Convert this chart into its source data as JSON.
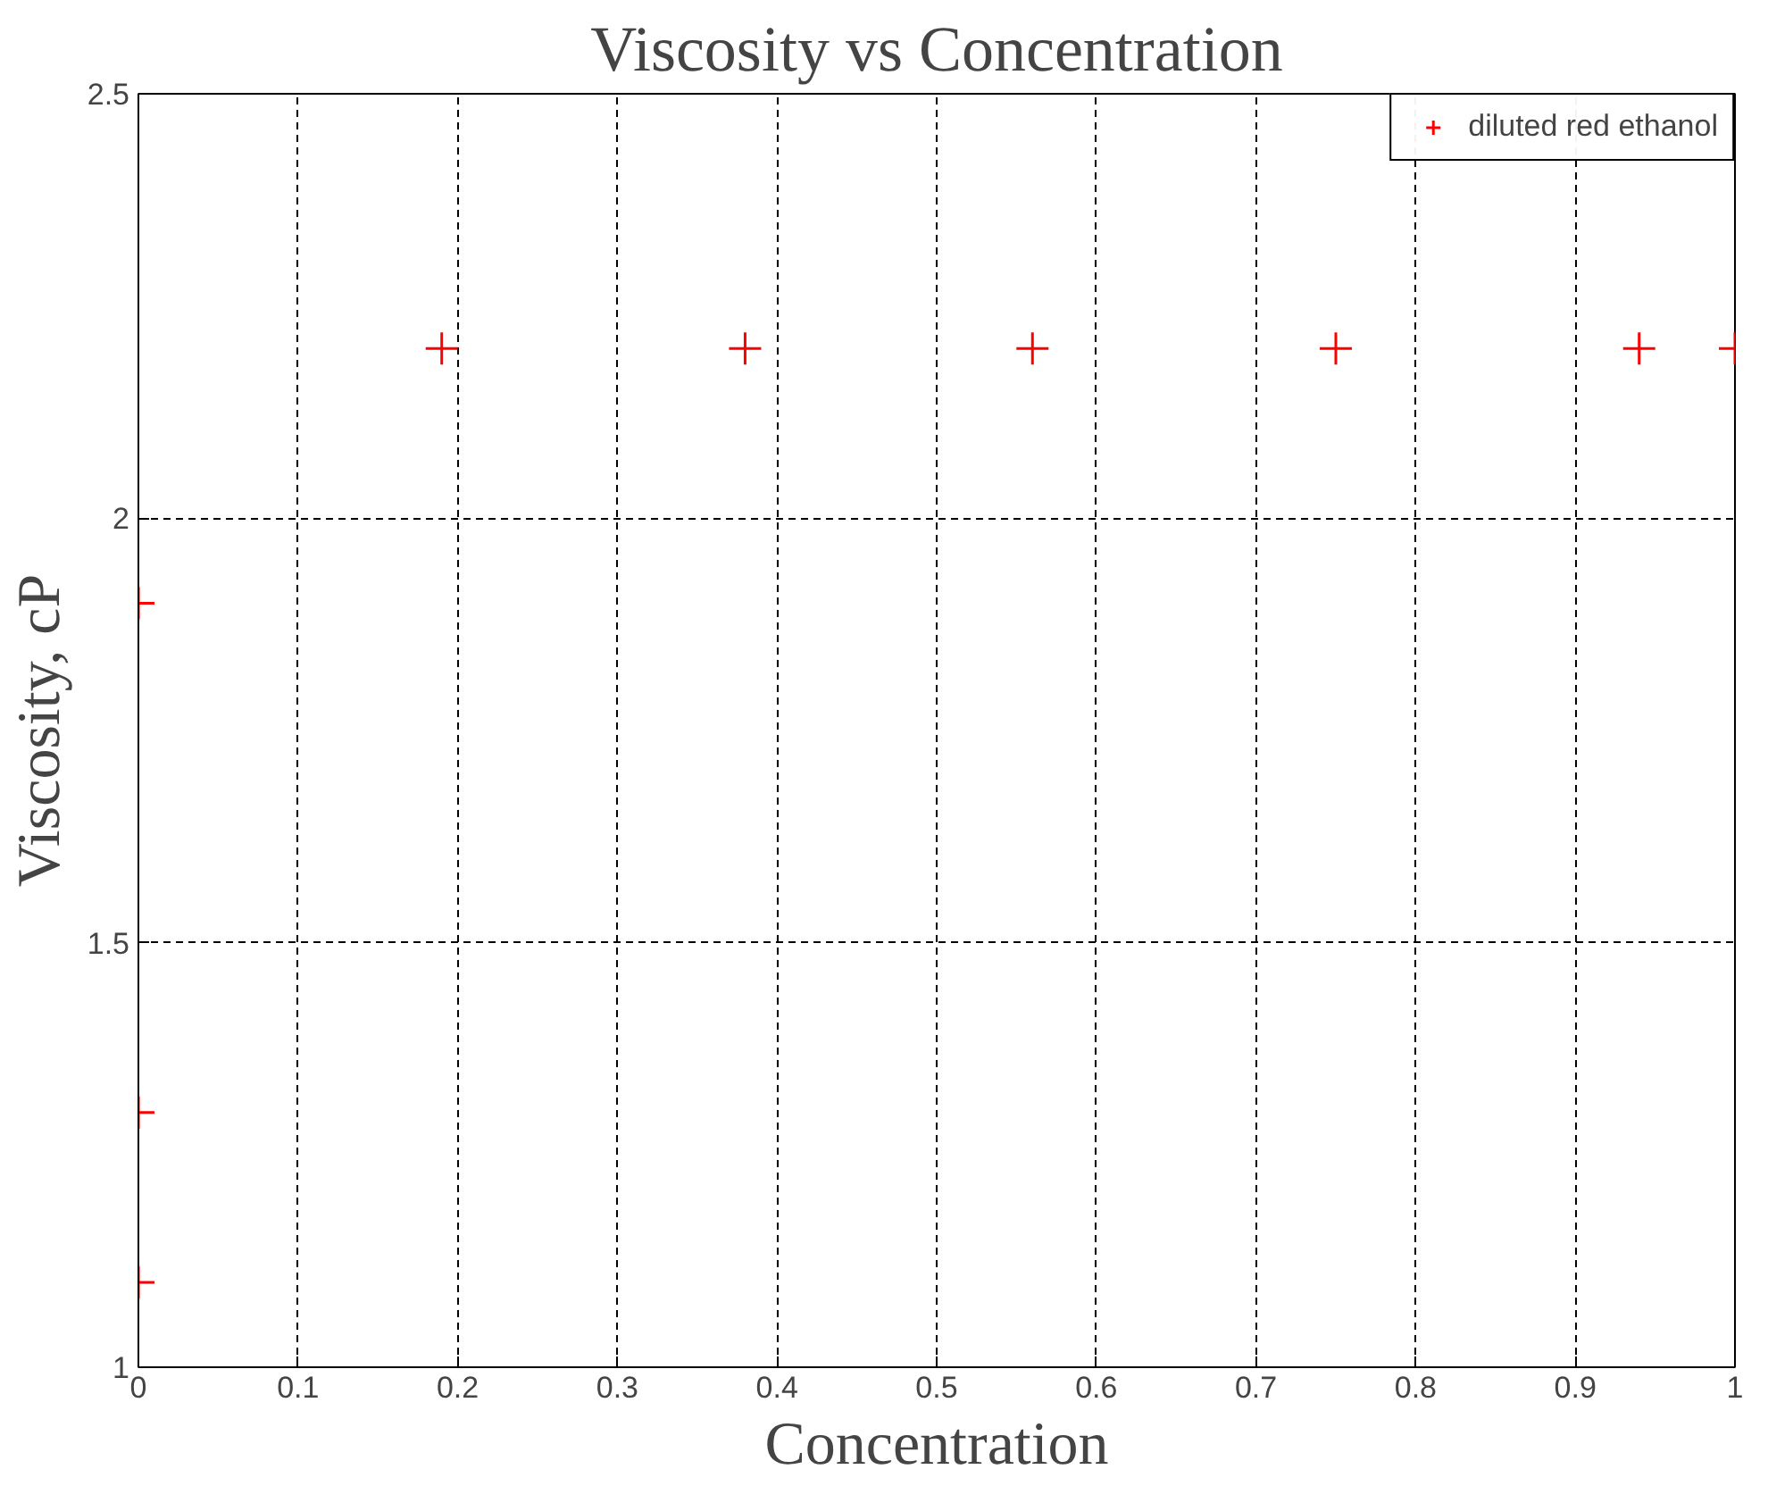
{
  "chart_data": {
    "type": "scatter",
    "title": "Viscosity vs Concentration",
    "xlabel": "Concentration",
    "ylabel": "Viscosity, cP",
    "series": [
      {
        "name": "diluted red ethanol",
        "color": "#ff0000",
        "x": [
          0,
          0,
          0,
          0.19,
          0.38,
          0.56,
          0.75,
          0.94,
          1.0
        ],
        "values": [
          1.9,
          1.3,
          1.1,
          2.2,
          2.2,
          2.2,
          2.2,
          2.2,
          2.2
        ]
      }
    ],
    "xlim": [
      0,
      1
    ],
    "xticks": [
      0,
      0.1,
      0.2,
      0.3,
      0.4,
      0.5,
      0.6,
      0.7,
      0.8,
      0.9,
      1
    ],
    "ylim": [
      1,
      2.5
    ],
    "yticks": [
      1,
      1.5,
      2,
      2.5
    ],
    "grid": true,
    "legend": "top right",
    "marker": "cross"
  }
}
